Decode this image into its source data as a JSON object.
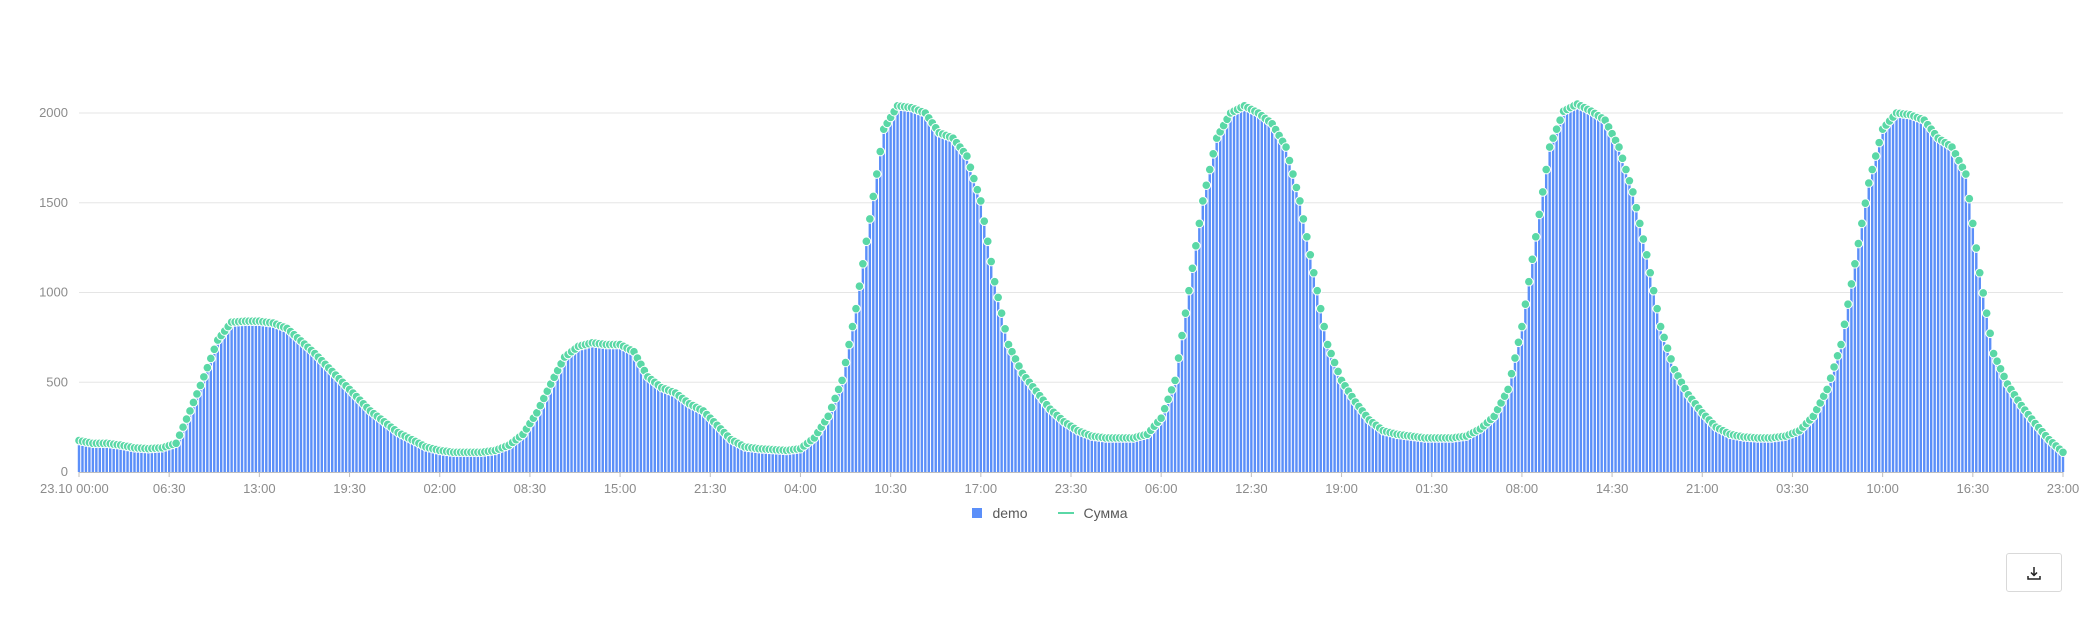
{
  "chart_data": {
    "type": "bar+line",
    "title": "",
    "xlabel": "",
    "ylabel": "",
    "ylim": [
      0,
      2000
    ],
    "y_ticks": [
      "0",
      "500",
      "1000",
      "1500",
      "2000"
    ],
    "y_tick_values": [
      0,
      500,
      1000,
      1500,
      2000
    ],
    "grid": true,
    "legend_placement": "bottom",
    "x_start": "23.10 00:00",
    "x_step": "1 hour",
    "x_ticks": [
      "23.10 00:00",
      "06:30",
      "13:00",
      "19:30",
      "02:00",
      "08:30",
      "15:00",
      "21:30",
      "04:00",
      "10:30",
      "17:00",
      "23:30",
      "06:00",
      "12:30",
      "19:00",
      "01:30",
      "08:00",
      "14:30",
      "21:00",
      "03:30",
      "10:00",
      "16:30",
      "23:00"
    ],
    "x_tick_hours": [
      0,
      6.5,
      13,
      19.5,
      26,
      32.5,
      39,
      45.5,
      52,
      58.5,
      65,
      71.5,
      78,
      84.5,
      91,
      97.5,
      104,
      110.5,
      117,
      123.5,
      130,
      136.5,
      143
    ],
    "series": [
      {
        "name": "demo",
        "type": "bar",
        "color": "#5B8FF9",
        "values": [
          160,
          150,
          150,
          140,
          125,
          120,
          125,
          150,
          330,
          520,
          720,
          820,
          830,
          830,
          820,
          790,
          720,
          650,
          570,
          490,
          410,
          330,
          270,
          210,
          170,
          130,
          110,
          100,
          100,
          100,
          110,
          140,
          200,
          320,
          480,
          630,
          690,
          710,
          700,
          700,
          660,
          520,
          460,
          430,
          370,
          330,
          250,
          170,
          130,
          120,
          115,
          110,
          120,
          180,
          300,
          500,
          900,
          1400,
          1900,
          2030,
          2020,
          1990,
          1880,
          1850,
          1750,
          1500,
          1050,
          700,
          540,
          440,
          340,
          270,
          220,
          190,
          180,
          180,
          180,
          200,
          290,
          500,
          1000,
          1500,
          1850,
          1990,
          2030,
          1990,
          1930,
          1800,
          1500,
          1100,
          700,
          500,
          380,
          280,
          220,
          200,
          190,
          180,
          180,
          180,
          190,
          230,
          300,
          450,
          800,
          1300,
          1800,
          2000,
          2040,
          2000,
          1950,
          1800,
          1550,
          1200,
          800,
          560,
          420,
          320,
          240,
          200,
          185,
          180,
          180,
          190,
          220,
          300,
          450,
          700,
          1150,
          1600,
          1900,
          1990,
          1980,
          1950,
          1850,
          1800,
          1650,
          1100,
          650,
          480,
          360,
          260,
          170,
          100
        ]
      },
      {
        "name": "Сумма",
        "type": "line-points",
        "color": "#5AD8A6",
        "values": [
          175,
          160,
          160,
          150,
          135,
          130,
          135,
          160,
          340,
          530,
          735,
          835,
          840,
          840,
          830,
          800,
          730,
          660,
          580,
          500,
          420,
          340,
          280,
          220,
          180,
          140,
          120,
          110,
          110,
          110,
          120,
          150,
          210,
          330,
          490,
          640,
          700,
          720,
          710,
          710,
          670,
          530,
          470,
          440,
          380,
          340,
          260,
          180,
          140,
          130,
          125,
          120,
          130,
          190,
          310,
          510,
          910,
          1410,
          1910,
          2040,
          2030,
          2000,
          1890,
          1860,
          1760,
          1510,
          1060,
          710,
          550,
          450,
          350,
          280,
          230,
          200,
          190,
          190,
          190,
          210,
          300,
          510,
          1010,
          1510,
          1860,
          2000,
          2040,
          2000,
          1940,
          1810,
          1510,
          1110,
          710,
          510,
          390,
          290,
          230,
          210,
          200,
          190,
          190,
          190,
          200,
          240,
          310,
          460,
          810,
          1310,
          1810,
          2010,
          2050,
          2010,
          1960,
          1810,
          1560,
          1210,
          810,
          570,
          430,
          330,
          250,
          210,
          195,
          190,
          190,
          200,
          230,
          310,
          460,
          710,
          1160,
          1610,
          1910,
          2000,
          1990,
          1960,
          1860,
          1810,
          1660,
          1110,
          660,
          490,
          370,
          270,
          180,
          110
        ]
      }
    ]
  },
  "legend": [
    {
      "label": "demo",
      "color": "#5B8FF9"
    },
    {
      "label": "Сумма",
      "color": "#5AD8A6"
    }
  ],
  "toolbar": {
    "download_icon": "download-icon"
  }
}
